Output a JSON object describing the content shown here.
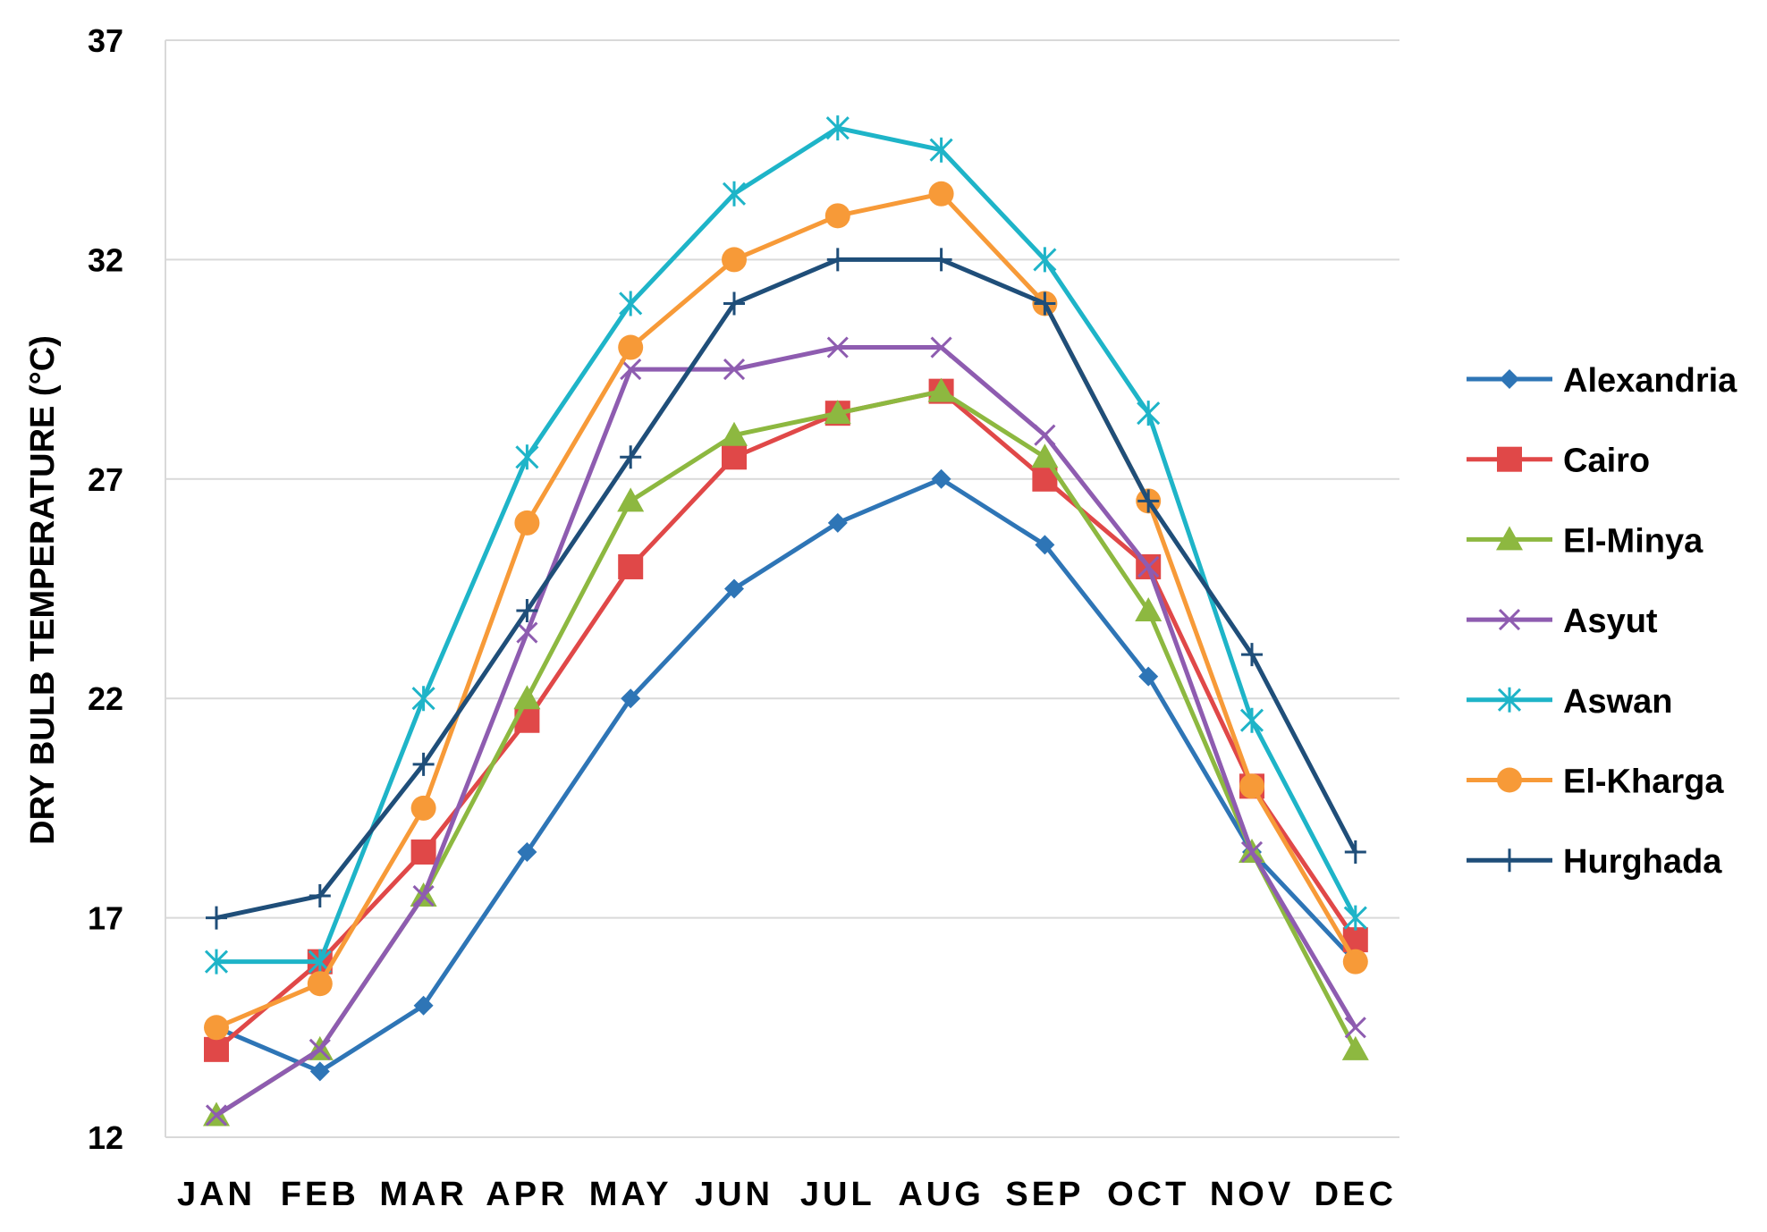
{
  "chart_data": {
    "type": "line",
    "title": "",
    "xlabel": "",
    "ylabel": "DRY BULB TEMPERATURE (°C)",
    "ylim": [
      12,
      37
    ],
    "yticks": [
      12,
      17,
      22,
      27,
      32,
      37
    ],
    "ytick_labels": [
      "12",
      "17",
      "22",
      "27",
      "32",
      "37"
    ],
    "grid": true,
    "legend_position": "right",
    "categories": [
      "JAN",
      "FEB",
      "MAR",
      "APR",
      "MAY",
      "JUN",
      "JUL",
      "AUG",
      "SEP",
      "OCT",
      "NOV",
      "DEC"
    ],
    "series": [
      {
        "name": "Alexandria",
        "color": "#2E75B6",
        "marker": "diamond",
        "values": [
          14.5,
          13.5,
          15,
          18.5,
          22,
          24.5,
          26,
          27,
          25.5,
          22.5,
          18.5,
          16
        ]
      },
      {
        "name": "Cairo",
        "color": "#E04848",
        "marker": "square",
        "values": [
          14,
          16,
          18.5,
          21.5,
          25,
          27.5,
          28.5,
          29,
          27,
          25,
          20,
          16.5
        ]
      },
      {
        "name": "El-Minya",
        "color": "#8DB840",
        "marker": "triangle",
        "values": [
          12.5,
          14,
          17.5,
          22,
          26.5,
          28,
          28.5,
          29,
          27.5,
          24,
          18.5,
          14
        ]
      },
      {
        "name": "Asyut",
        "color": "#8E5CB0",
        "marker": "x",
        "values": [
          12.5,
          14,
          17.5,
          23.5,
          29.5,
          29.5,
          30,
          30,
          28,
          25,
          18.5,
          14.5
        ]
      },
      {
        "name": "Aswan",
        "color": "#1EB4C8",
        "marker": "asterisk",
        "values": [
          16,
          16,
          22,
          27.5,
          31,
          33.5,
          35,
          34.5,
          32,
          28.5,
          21.5,
          17
        ]
      },
      {
        "name": "El-Kharga",
        "color": "#F79A38",
        "marker": "circle",
        "values": [
          14.5,
          15.5,
          19.5,
          26,
          30,
          32,
          33,
          33.5,
          31,
          26.5,
          20,
          16
        ]
      },
      {
        "name": "Hurghada",
        "color": "#1F4E79",
        "marker": "plus",
        "values": [
          17,
          17.5,
          20.5,
          24,
          27.5,
          31,
          32,
          32,
          31,
          26.5,
          23,
          18.5
        ]
      }
    ]
  }
}
